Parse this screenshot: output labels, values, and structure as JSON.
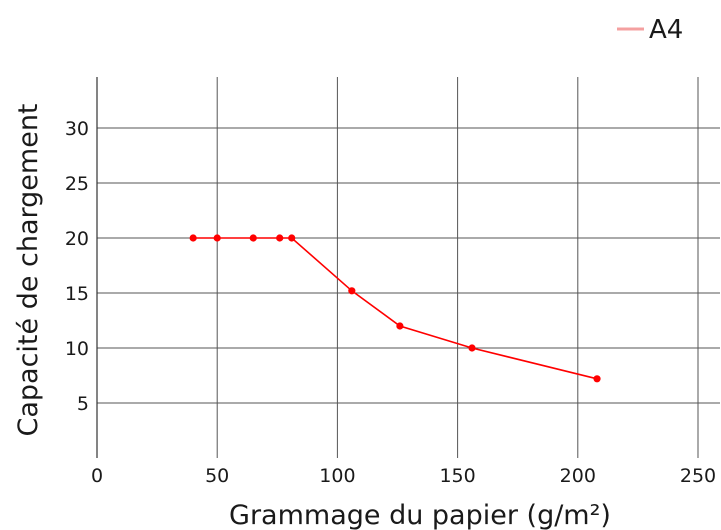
{
  "chart_data": {
    "type": "line",
    "xlabel": "Grammage du papier (g/m²)",
    "ylabel": "Capacité de chargement",
    "xlim": [
      0,
      250
    ],
    "ylim": [
      0,
      33
    ],
    "xticks": [
      0,
      50,
      100,
      150,
      200,
      250
    ],
    "yticks": [
      5,
      10,
      15,
      20,
      25,
      30
    ],
    "grid": true,
    "legend_position": "top-right",
    "series": [
      {
        "name": "A4",
        "color": "#ff0000",
        "legend_color": "#f4a0a0",
        "x": [
          40,
          50,
          65,
          76,
          81,
          106,
          126,
          156,
          208
        ],
        "y": [
          20,
          20,
          20,
          20,
          20,
          15.2,
          12,
          10,
          7.2
        ]
      }
    ]
  }
}
